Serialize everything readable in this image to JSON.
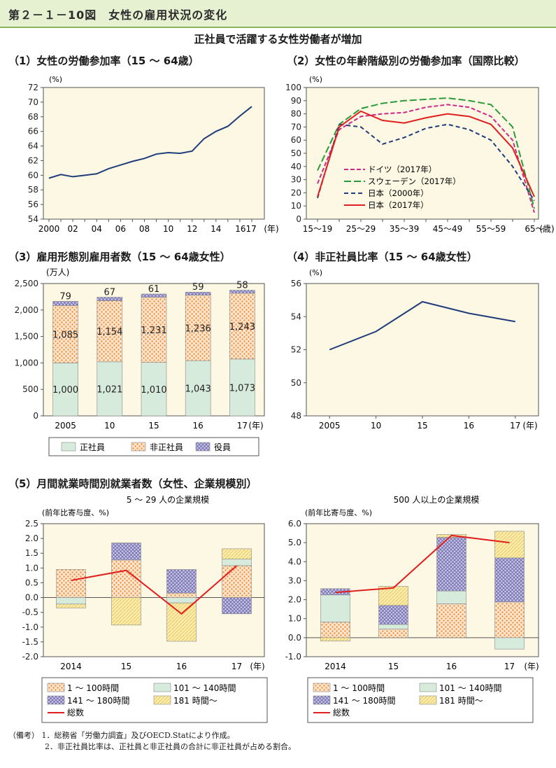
{
  "header": {
    "figure_title": "第２－１－10図　女性の雇用状況の変化"
  },
  "subtitle": "正社員で活躍する女性労働者が増加",
  "chart_data": [
    {
      "id": "p1",
      "panel_title": "（1）女性の労働参加率（15 ～ 64歳）",
      "type": "line",
      "y_unit": "(%)",
      "x_tick_labels": [
        "2000",
        "02",
        "04",
        "06",
        "08",
        "10",
        "12",
        "14",
        "1617",
        "(年)"
      ],
      "x": [
        2000,
        2001,
        2002,
        2003,
        2004,
        2005,
        2006,
        2007,
        2008,
        2009,
        2010,
        2011,
        2012,
        2013,
        2014,
        2015,
        2016,
        2017
      ],
      "series": [
        {
          "values": [
            59.6,
            60.1,
            59.8,
            60.0,
            60.2,
            60.9,
            61.4,
            61.9,
            62.3,
            62.9,
            63.1,
            63.0,
            63.3,
            65.0,
            66.0,
            66.7,
            68.1,
            69.4
          ],
          "color": "#1f3d7a"
        }
      ],
      "ylim": [
        54,
        72
      ],
      "yticks": [
        "54",
        "56",
        "58",
        "60",
        "62",
        "64",
        "66",
        "68",
        "70",
        "72"
      ]
    },
    {
      "id": "p2",
      "panel_title": "（2）女性の年齢階級別の労働参加率（国際比較）",
      "type": "line",
      "y_unit": "(%)",
      "categories": [
        "15～19",
        "20～24",
        "25～29",
        "30～34",
        "35～39",
        "40～44",
        "45～49",
        "50～54",
        "55～59",
        "60～64",
        "65～"
      ],
      "x_tick_labels": [
        "15～19",
        "25～29",
        "35～39",
        "45～49",
        "55～59",
        "65～",
        "(歳)"
      ],
      "ylim": [
        0,
        100
      ],
      "yticks": [
        "0",
        "10",
        "20",
        "30",
        "40",
        "50",
        "60",
        "70",
        "80",
        "90",
        "100"
      ],
      "series": [
        {
          "name": "ドイツ（2017年）",
          "color": "#cc2a8a",
          "dash": "6,3",
          "values": [
            27,
            68,
            78,
            80,
            81,
            85,
            87,
            85,
            78,
            60,
            5
          ]
        },
        {
          "name": "スウェーデン（2017年）",
          "color": "#2a9a3a",
          "dash": "10,4",
          "values": [
            37,
            72,
            84,
            88,
            90,
            91,
            92,
            90,
            87,
            70,
            8
          ]
        },
        {
          "name": "日本（2000年）",
          "color": "#1f3d7a",
          "dash": "6,4",
          "values": [
            16,
            72,
            70,
            57,
            62,
            69,
            72,
            68,
            60,
            40,
            14
          ]
        },
        {
          "name": "日本（2017年）",
          "color": "#e02020",
          "dash": "",
          "values": [
            17,
            70,
            82,
            75,
            73,
            77,
            80,
            78,
            72,
            54,
            17
          ]
        }
      ]
    },
    {
      "id": "p3",
      "panel_title": "（3）雇用形態別雇用者数（15 ～ 64歳女性）",
      "type": "bar",
      "y_unit": "(万人)",
      "categories": [
        "2005",
        "10",
        "15",
        "16",
        "17"
      ],
      "x_unit": "(年)",
      "ylim": [
        0,
        2500
      ],
      "yticks": [
        "0",
        "500",
        "1,000",
        "1,500",
        "2,000",
        "2,500"
      ],
      "series": [
        {
          "name": "正社員",
          "values": [
            1000,
            1021,
            1010,
            1043,
            1073
          ],
          "labels": [
            "1,000",
            "1,021",
            "1,010",
            "1,043",
            "1,073"
          ]
        },
        {
          "name": "非正社員",
          "values": [
            1085,
            1154,
            1231,
            1236,
            1243
          ],
          "labels": [
            "1,085",
            "1,154",
            "1,231",
            "1,236",
            "1,243"
          ]
        },
        {
          "name": "役員",
          "values": [
            79,
            67,
            61,
            59,
            58
          ],
          "labels": [
            "79",
            "67",
            "61",
            "59",
            "58"
          ]
        }
      ]
    },
    {
      "id": "p4",
      "panel_title": "（4）非正社員比率（15 ～ 64歳女性）",
      "type": "line",
      "y_unit": "(%)",
      "categories": [
        "2005",
        "10",
        "15",
        "16",
        "17"
      ],
      "x_unit": "(年)",
      "ylim": [
        48,
        56
      ],
      "yticks": [
        "48",
        "50",
        "52",
        "54",
        "56"
      ],
      "series": [
        {
          "values": [
            52.0,
            53.1,
            54.9,
            54.2,
            53.7
          ],
          "color": "#1f3d7a"
        }
      ]
    },
    {
      "id": "p5a",
      "panel_title": "（5）月間就業時間別就業者数（女性、企業規模別）",
      "subtitle": "5 ～ 29 人の企業規模",
      "type": "bar",
      "y_unit": "(前年比寄与度、%)",
      "categories": [
        "2014",
        "15",
        "16",
        "17"
      ],
      "x_unit": "(年)",
      "ylim": [
        -2.0,
        2.5
      ],
      "yticks": [
        "-2.0",
        "-1.5",
        "-1.0",
        "-0.5",
        "0.0",
        "0.5",
        "1.0",
        "1.5",
        "2.0",
        "2.5"
      ],
      "series": [
        {
          "name": "1 ～ 100時間",
          "values": [
            0.95,
            1.27,
            0.15,
            1.08
          ]
        },
        {
          "name": "101 ～ 140時間",
          "values": [
            -0.22,
            0.0,
            -0.18,
            0.22
          ]
        },
        {
          "name": "141 ～ 180時間",
          "values": [
            0.0,
            0.58,
            0.8,
            -0.55
          ]
        },
        {
          "name": "181 時間～",
          "values": [
            -0.13,
            -0.93,
            -1.3,
            0.35
          ]
        },
        {
          "name": "総数",
          "values": [
            0.58,
            0.92,
            -0.55,
            1.08
          ]
        }
      ]
    },
    {
      "id": "p5b",
      "subtitle": "500 人以上の企業規模",
      "type": "bar",
      "y_unit": "(前年比寄与度、%)",
      "categories": [
        "2014",
        "15",
        "16",
        "17"
      ],
      "x_unit": "(年)",
      "ylim": [
        -1.0,
        6.0
      ],
      "yticks": [
        "-1.0",
        "0.0",
        "1.0",
        "2.0",
        "3.0",
        "4.0",
        "5.0",
        "6.0"
      ],
      "series": [
        {
          "name": "1 ～ 100時間",
          "values": [
            0.82,
            0.45,
            1.78,
            1.88
          ]
        },
        {
          "name": "101 ～ 140時間",
          "values": [
            1.43,
            0.25,
            0.68,
            -0.6
          ]
        },
        {
          "name": "141 ～ 180時間",
          "values": [
            0.33,
            1.0,
            2.82,
            2.32
          ]
        },
        {
          "name": "181 時間～",
          "values": [
            -0.18,
            1.0,
            0.15,
            1.4
          ]
        },
        {
          "name": "総数",
          "values": [
            2.38,
            2.62,
            5.38,
            5.0
          ]
        }
      ]
    }
  ],
  "legend_p3": [
    "正社員",
    "非正社員",
    "役員"
  ],
  "legend_p5": [
    "1 ～ 100時間",
    "101 ～ 140時間",
    "141 ～ 180時間",
    "181 時間～",
    "総数"
  ],
  "notes": {
    "label": "（備考）",
    "items": [
      "1．総務省「労働力調査」及びOECD.Statにより作成。",
      "2．非正社員比率は、正社員と非正社員の合計に非正社員が占める割合。"
    ]
  },
  "colors": {
    "header_bg": "#e6f1d2",
    "plot_bg": "#fdf8e3",
    "seishain": "#d7ebdc",
    "hiseishain": "#f2a25a",
    "yakuin": "#7e7ab8",
    "h181": "#f6e08c",
    "total": "#e02020"
  }
}
